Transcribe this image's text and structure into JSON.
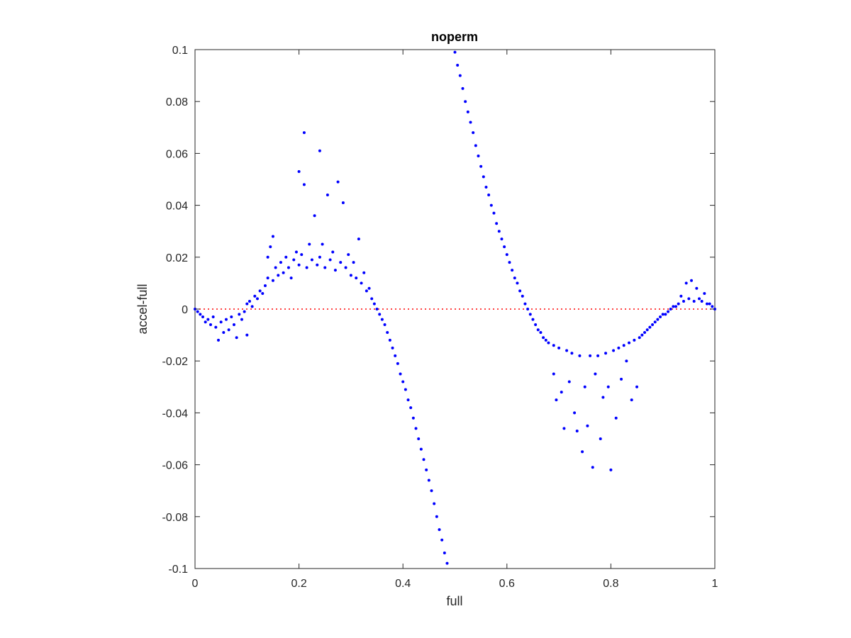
{
  "chart_data": {
    "type": "scatter",
    "title": "noperm",
    "xlabel": "full",
    "ylabel": "accel-full",
    "xlim": [
      0,
      1
    ],
    "ylim": [
      -0.1,
      0.1
    ],
    "xticks": [
      0,
      0.2,
      0.4,
      0.6,
      0.8,
      1
    ],
    "xtick_labels": [
      "0",
      "0.2",
      "0.4",
      "0.6",
      "0.8",
      "1"
    ],
    "yticks": [
      -0.1,
      -0.08,
      -0.06,
      -0.04,
      -0.02,
      0,
      0.02,
      0.04,
      0.06,
      0.08,
      0.1
    ],
    "ytick_labels": [
      "-0.1",
      "-0.08",
      "-0.06",
      "-0.04",
      "-0.02",
      "0",
      "0.02",
      "0.04",
      "0.06",
      "0.08",
      "0.1"
    ],
    "grid": false,
    "reference_line": {
      "y": 0,
      "style": "dotted",
      "color": "#ff0000"
    },
    "marker_color": "#0000ff",
    "series": [
      {
        "points": [
          [
            0.0,
            0.0
          ],
          [
            0.005,
            -0.001
          ],
          [
            0.01,
            -0.002
          ],
          [
            0.015,
            -0.003
          ],
          [
            0.02,
            -0.005
          ],
          [
            0.025,
            -0.004
          ],
          [
            0.03,
            -0.006
          ],
          [
            0.035,
            -0.003
          ],
          [
            0.04,
            -0.007
          ],
          [
            0.045,
            -0.012
          ],
          [
            0.05,
            -0.005
          ],
          [
            0.055,
            -0.009
          ],
          [
            0.06,
            -0.004
          ],
          [
            0.065,
            -0.008
          ],
          [
            0.07,
            -0.003
          ],
          [
            0.075,
            -0.006
          ],
          [
            0.08,
            -0.011
          ],
          [
            0.085,
            -0.002
          ],
          [
            0.09,
            -0.004
          ],
          [
            0.095,
            -0.001
          ],
          [
            0.1,
            -0.01
          ],
          [
            0.1,
            0.002
          ],
          [
            0.105,
            0.003
          ],
          [
            0.11,
            0.001
          ],
          [
            0.115,
            0.005
          ],
          [
            0.12,
            0.004
          ],
          [
            0.125,
            0.007
          ],
          [
            0.13,
            0.006
          ],
          [
            0.135,
            0.009
          ],
          [
            0.14,
            0.012
          ],
          [
            0.14,
            0.02
          ],
          [
            0.145,
            0.024
          ],
          [
            0.15,
            0.011
          ],
          [
            0.15,
            0.028
          ],
          [
            0.155,
            0.016
          ],
          [
            0.16,
            0.013
          ],
          [
            0.165,
            0.018
          ],
          [
            0.17,
            0.014
          ],
          [
            0.175,
            0.02
          ],
          [
            0.18,
            0.016
          ],
          [
            0.185,
            0.012
          ],
          [
            0.19,
            0.019
          ],
          [
            0.195,
            0.022
          ],
          [
            0.2,
            0.053
          ],
          [
            0.2,
            0.017
          ],
          [
            0.205,
            0.021
          ],
          [
            0.21,
            0.068
          ],
          [
            0.21,
            0.048
          ],
          [
            0.215,
            0.016
          ],
          [
            0.22,
            0.025
          ],
          [
            0.225,
            0.019
          ],
          [
            0.23,
            0.036
          ],
          [
            0.235,
            0.017
          ],
          [
            0.24,
            0.061
          ],
          [
            0.24,
            0.02
          ],
          [
            0.245,
            0.025
          ],
          [
            0.25,
            0.016
          ],
          [
            0.255,
            0.044
          ],
          [
            0.26,
            0.019
          ],
          [
            0.265,
            0.022
          ],
          [
            0.27,
            0.015
          ],
          [
            0.275,
            0.049
          ],
          [
            0.28,
            0.018
          ],
          [
            0.285,
            0.041
          ],
          [
            0.29,
            0.016
          ],
          [
            0.295,
            0.021
          ],
          [
            0.3,
            0.013
          ],
          [
            0.305,
            0.018
          ],
          [
            0.31,
            0.012
          ],
          [
            0.315,
            0.027
          ],
          [
            0.32,
            0.01
          ],
          [
            0.325,
            0.014
          ],
          [
            0.33,
            0.007
          ],
          [
            0.335,
            0.008
          ],
          [
            0.34,
            0.004
          ],
          [
            0.345,
            0.002
          ],
          [
            0.35,
            0.0
          ],
          [
            0.355,
            -0.002
          ],
          [
            0.36,
            -0.004
          ],
          [
            0.365,
            -0.006
          ],
          [
            0.37,
            -0.009
          ],
          [
            0.375,
            -0.012
          ],
          [
            0.38,
            -0.015
          ],
          [
            0.385,
            -0.018
          ],
          [
            0.39,
            -0.021
          ],
          [
            0.395,
            -0.025
          ],
          [
            0.4,
            -0.028
          ],
          [
            0.405,
            -0.031
          ],
          [
            0.41,
            -0.035
          ],
          [
            0.415,
            -0.038
          ],
          [
            0.42,
            -0.042
          ],
          [
            0.425,
            -0.046
          ],
          [
            0.43,
            -0.05
          ],
          [
            0.435,
            -0.054
          ],
          [
            0.44,
            -0.058
          ],
          [
            0.445,
            -0.062
          ],
          [
            0.45,
            -0.066
          ],
          [
            0.455,
            -0.07
          ],
          [
            0.46,
            -0.075
          ],
          [
            0.465,
            -0.08
          ],
          [
            0.47,
            -0.085
          ],
          [
            0.475,
            -0.089
          ],
          [
            0.48,
            -0.094
          ],
          [
            0.485,
            -0.098
          ],
          [
            0.5,
            0.099
          ],
          [
            0.505,
            0.094
          ],
          [
            0.51,
            0.09
          ],
          [
            0.515,
            0.085
          ],
          [
            0.52,
            0.08
          ],
          [
            0.525,
            0.076
          ],
          [
            0.53,
            0.072
          ],
          [
            0.535,
            0.068
          ],
          [
            0.54,
            0.063
          ],
          [
            0.545,
            0.059
          ],
          [
            0.55,
            0.055
          ],
          [
            0.555,
            0.051
          ],
          [
            0.56,
            0.047
          ],
          [
            0.565,
            0.044
          ],
          [
            0.57,
            0.04
          ],
          [
            0.575,
            0.037
          ],
          [
            0.58,
            0.033
          ],
          [
            0.585,
            0.03
          ],
          [
            0.59,
            0.027
          ],
          [
            0.595,
            0.024
          ],
          [
            0.6,
            0.021
          ],
          [
            0.605,
            0.018
          ],
          [
            0.61,
            0.015
          ],
          [
            0.615,
            0.012
          ],
          [
            0.62,
            0.01
          ],
          [
            0.625,
            0.007
          ],
          [
            0.63,
            0.005
          ],
          [
            0.635,
            0.002
          ],
          [
            0.64,
            0.0
          ],
          [
            0.645,
            -0.002
          ],
          [
            0.65,
            -0.004
          ],
          [
            0.655,
            -0.006
          ],
          [
            0.66,
            -0.008
          ],
          [
            0.665,
            -0.009
          ],
          [
            0.67,
            -0.011
          ],
          [
            0.675,
            -0.012
          ],
          [
            0.68,
            -0.013
          ],
          [
            0.69,
            -0.014
          ],
          [
            0.69,
            -0.025
          ],
          [
            0.695,
            -0.035
          ],
          [
            0.7,
            -0.015
          ],
          [
            0.705,
            -0.032
          ],
          [
            0.71,
            -0.046
          ],
          [
            0.715,
            -0.016
          ],
          [
            0.72,
            -0.028
          ],
          [
            0.725,
            -0.017
          ],
          [
            0.73,
            -0.04
          ],
          [
            0.735,
            -0.047
          ],
          [
            0.74,
            -0.018
          ],
          [
            0.745,
            -0.055
          ],
          [
            0.75,
            -0.03
          ],
          [
            0.755,
            -0.045
          ],
          [
            0.76,
            -0.018
          ],
          [
            0.765,
            -0.061
          ],
          [
            0.77,
            -0.025
          ],
          [
            0.775,
            -0.018
          ],
          [
            0.78,
            -0.05
          ],
          [
            0.785,
            -0.034
          ],
          [
            0.79,
            -0.017
          ],
          [
            0.795,
            -0.03
          ],
          [
            0.8,
            -0.062
          ],
          [
            0.805,
            -0.016
          ],
          [
            0.81,
            -0.042
          ],
          [
            0.815,
            -0.015
          ],
          [
            0.82,
            -0.027
          ],
          [
            0.825,
            -0.014
          ],
          [
            0.83,
            -0.02
          ],
          [
            0.835,
            -0.013
          ],
          [
            0.84,
            -0.035
          ],
          [
            0.845,
            -0.012
          ],
          [
            0.85,
            -0.03
          ],
          [
            0.855,
            -0.011
          ],
          [
            0.86,
            -0.01
          ],
          [
            0.865,
            -0.009
          ],
          [
            0.87,
            -0.008
          ],
          [
            0.875,
            -0.007
          ],
          [
            0.88,
            -0.006
          ],
          [
            0.885,
            -0.005
          ],
          [
            0.89,
            -0.004
          ],
          [
            0.895,
            -0.003
          ],
          [
            0.9,
            -0.002
          ],
          [
            0.905,
            -0.002
          ],
          [
            0.91,
            -0.001
          ],
          [
            0.915,
            0.0
          ],
          [
            0.92,
            0.001
          ],
          [
            0.925,
            0.001
          ],
          [
            0.93,
            0.002
          ],
          [
            0.935,
            0.005
          ],
          [
            0.94,
            0.003
          ],
          [
            0.945,
            0.01
          ],
          [
            0.95,
            0.004
          ],
          [
            0.955,
            0.011
          ],
          [
            0.96,
            0.003
          ],
          [
            0.965,
            0.008
          ],
          [
            0.97,
            0.004
          ],
          [
            0.975,
            0.003
          ],
          [
            0.98,
            0.006
          ],
          [
            0.985,
            0.002
          ],
          [
            0.99,
            0.002
          ],
          [
            0.995,
            0.001
          ],
          [
            1.0,
            0.0
          ]
        ]
      }
    ]
  }
}
